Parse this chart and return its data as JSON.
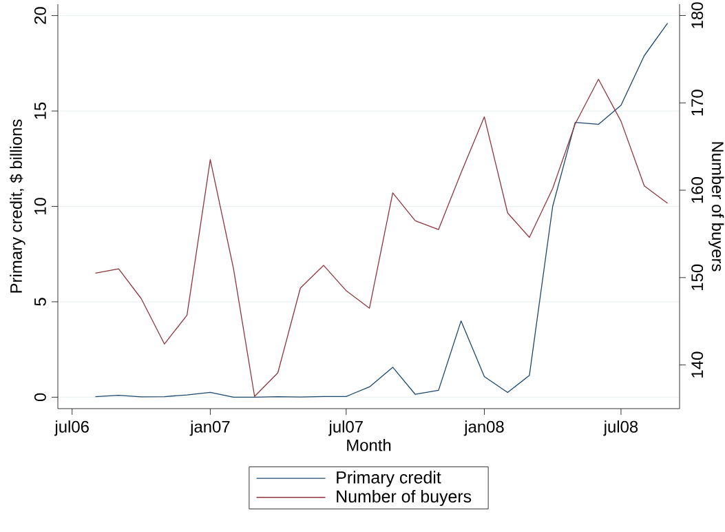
{
  "chart_data": {
    "type": "line",
    "xlabel": "Month",
    "ylabel": "Primary credit, $ billions",
    "y2label": "Number of buyers",
    "x": [
      "2006-08",
      "2006-09",
      "2006-10",
      "2006-11",
      "2006-12",
      "2007-01",
      "2007-02",
      "2007-03",
      "2007-04",
      "2007-05",
      "2007-06",
      "2007-07",
      "2007-08",
      "2007-09",
      "2007-10",
      "2007-11",
      "2007-12",
      "2008-01",
      "2008-02",
      "2008-03",
      "2008-04",
      "2008-05",
      "2008-06",
      "2008-07",
      "2008-08",
      "2008-09"
    ],
    "series": [
      {
        "name": "Primary credit",
        "color": "#1a476f",
        "values": [
          0.03,
          0.1,
          0.02,
          0.03,
          0.12,
          0.25,
          0,
          0,
          0.03,
          0.01,
          0.04,
          0.04,
          0.54,
          1.57,
          0.15,
          0.36,
          4.0,
          1.08,
          0.25,
          1.14,
          10.0,
          14.4,
          14.3,
          15.3,
          17.9,
          19.6
        ]
      },
      {
        "name": "Number of buyers",
        "color": "#90353b",
        "axis": "y2",
        "values": [
          150.5,
          151,
          147.6,
          142.4,
          145.7,
          163.5,
          151,
          136.4,
          139.1,
          148.8,
          151.4,
          148.5,
          146.5,
          159.7,
          156.5,
          155.5,
          162,
          168.4,
          157.4,
          154.6,
          160.2,
          167.6,
          172.7,
          167.9,
          160.5,
          158.5
        ]
      }
    ],
    "xlim": [
      "2006-06-12",
      "2008-09-17"
    ],
    "xticks": [
      {
        "value": "2006-07",
        "label": "jul06"
      },
      {
        "value": "2007-01",
        "label": "jan07"
      },
      {
        "value": "2007-07",
        "label": "jul07"
      },
      {
        "value": "2008-01",
        "label": "jan08"
      },
      {
        "value": "2008-07",
        "label": "jul08"
      }
    ],
    "ylim": [
      -0.6,
      20.6
    ],
    "yticks": [
      0,
      5,
      10,
      15,
      20
    ],
    "y2lim": [
      135,
      181.3
    ],
    "y2ticks": [
      140,
      150,
      160,
      170,
      180
    ],
    "grid": "y",
    "legend": "bottom",
    "line_style": "solid",
    "marker": "none"
  }
}
